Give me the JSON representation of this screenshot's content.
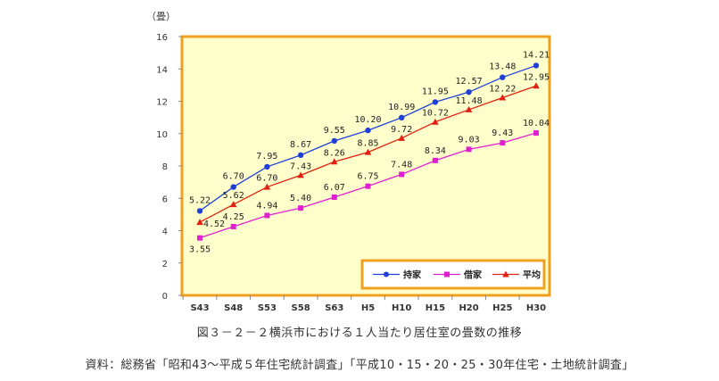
{
  "chart_data": {
    "type": "line",
    "categories": [
      "S43",
      "S48",
      "S53",
      "S58",
      "S63",
      "H5",
      "H10",
      "H15",
      "H20",
      "H25",
      "H30"
    ],
    "ylim": [
      0,
      16
    ],
    "yticks": [
      0,
      2,
      4,
      6,
      8,
      10,
      12,
      14,
      16
    ],
    "ylabel": "（畳）",
    "grid": false,
    "legend_position": "bottom-right",
    "series": [
      {
        "name": "持家",
        "color": "#1f3fd6",
        "marker": "circle",
        "values": [
          5.22,
          6.7,
          7.95,
          8.67,
          9.55,
          10.2,
          10.99,
          11.95,
          12.57,
          13.48,
          14.21
        ],
        "labels": [
          "5.22",
          "6.70",
          "7.95",
          "8.67",
          "9.55",
          "10.20",
          "10.99",
          "11.95",
          "12.57",
          "13.48",
          "14.21"
        ]
      },
      {
        "name": "借家",
        "color": "#e020d0",
        "marker": "square",
        "values": [
          3.55,
          4.25,
          4.94,
          5.4,
          6.07,
          6.75,
          7.48,
          8.34,
          9.03,
          9.43,
          10.04
        ],
        "labels": [
          "3.55",
          "4.25",
          "4.94",
          "5.40",
          "6.07",
          "6.75",
          "7.48",
          "8.34",
          "9.03",
          "9.43",
          "10.04"
        ]
      },
      {
        "name": "平均",
        "color": "#e02010",
        "marker": "triangle",
        "values": [
          4.52,
          5.62,
          6.7,
          7.43,
          8.26,
          8.85,
          9.72,
          10.72,
          11.48,
          12.22,
          12.95
        ],
        "labels": [
          "4.52",
          "5.62",
          "6.70",
          "7.43",
          "8.26",
          "8.85",
          "9.72",
          "10.72",
          "11.48",
          "12.22",
          "12.95"
        ]
      }
    ],
    "colors": {
      "plot_background": "#ffffcc",
      "frame": "#f0a020"
    }
  },
  "caption": "図３－２－２横浜市における１人当たり居住室の畳数の推移",
  "source": "資料：総務省「昭和43～平成５年住宅統計調査」「平成10・15・20・25・30年住宅・土地統計調査」"
}
